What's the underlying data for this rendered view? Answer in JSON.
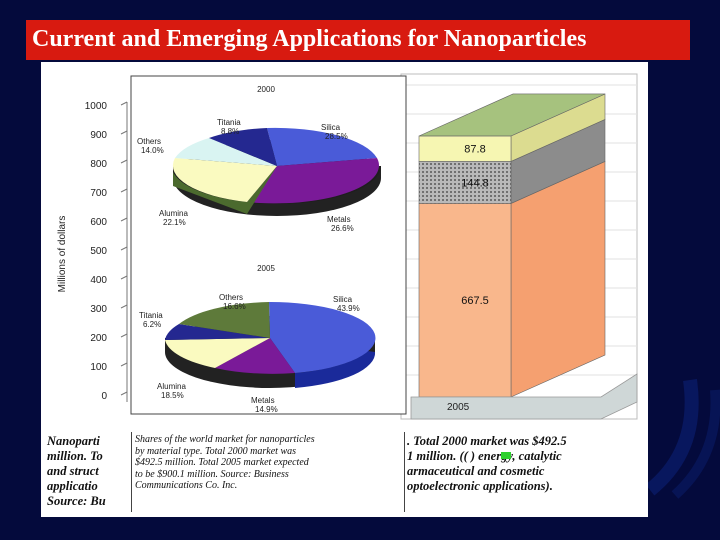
{
  "slide": {
    "title": "Current and Emerging Applications for Nanoparticles"
  },
  "colors": {
    "background": "#040a3c",
    "title_bar": "#d81a10",
    "stack_bottom": "#f9b78c",
    "stack_mid": "#b9b9b9",
    "stack_upper": "#f6f6b2",
    "stack_top": "#a6c27e",
    "pie_silica": "#4a5bd8",
    "pie_metals": "#7a1a98",
    "pie_alumina": "#fafac0",
    "pie_titania": "#242890",
    "pie_others_2000": "#d9f4f2",
    "pie_others_2005": "#5e7a3a",
    "pie_titania_2000_green": "#5e7a3a"
  },
  "chart_data": [
    {
      "type": "bar",
      "subtype": "stacked",
      "ylabel": "Millions of dollars",
      "ylim": [
        0,
        1000
      ],
      "yticks": [
        "1000",
        "900",
        "800",
        "700",
        "600",
        "500",
        "400",
        "300",
        "200",
        "100",
        "0"
      ],
      "categories": [
        "2005"
      ],
      "series": [
        {
          "values": [
            667.5
          ],
          "label": "667.5"
        },
        {
          "values": [
            144.8
          ],
          "label": "144.8"
        },
        {
          "values": [
            87.8
          ],
          "label": "87.8"
        }
      ]
    },
    {
      "type": "pie",
      "title": "2000",
      "slices": [
        {
          "name": "Silica",
          "value": 28.5,
          "label": "28.5%"
        },
        {
          "name": "Metals",
          "value": 26.6,
          "label": "26.6%"
        },
        {
          "name": "Alumina",
          "value": 22.1,
          "label": "22.1%"
        },
        {
          "name": "Others",
          "value": 14.0,
          "label": "14.0%"
        },
        {
          "name": "Titania",
          "value": 8.8,
          "label": "8.8%"
        }
      ]
    },
    {
      "type": "pie",
      "title": "2005",
      "slices": [
        {
          "name": "Silica",
          "value": 43.9,
          "label": "43.9%"
        },
        {
          "name": "Metals",
          "value": 14.9,
          "label": "14.9%"
        },
        {
          "name": "Alumina",
          "value": 18.5,
          "label": "18.5%"
        },
        {
          "name": "Titania",
          "value": 6.2,
          "label": "6.2%"
        },
        {
          "name": "Others",
          "value": 16.6,
          "label": "16.6%"
        }
      ]
    }
  ],
  "captions": {
    "behind_lines": [
      "Nanoparti",
      "million. To",
      "and struct",
      "applicatio",
      "Source: Bu"
    ],
    "behind_right_lines": [
      ". Total 2000 market was $492.5",
      "1 million. ((   ) energy, catalytic",
      "armaceutical and cosmetic",
      "optoelectronic applications)."
    ],
    "inset_lines": [
      "Shares of the world market for nanoparticles",
      "by material type. Total 2000 market was",
      "$492.5 million. Total 2005 market expected",
      "to be $900.1 million. Source: Business",
      "Communications Co. Inc."
    ]
  }
}
